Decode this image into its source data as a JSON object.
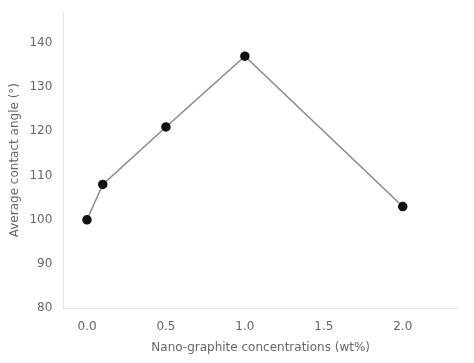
{
  "chart_data": {
    "type": "line",
    "x": [
      0.0,
      0.1,
      0.5,
      1.0,
      2.0
    ],
    "values": [
      100.0,
      108.0,
      121.0,
      137.0,
      103.0
    ],
    "color": "#888888",
    "colors": [
      "#111111",
      "#111111",
      "#111111",
      "#111111",
      "#111111"
    ],
    "marker": "circle",
    "xlabel": "Nano-graphite concentrations (wt%)",
    "ylabel": "Average contact angle (°)",
    "xlim": [
      -0.15,
      2.35
    ],
    "ylim": [
      80,
      147
    ],
    "xticks": [
      {
        "value": 0.0,
        "label": "0.0"
      },
      0.5,
      {
        "value": 1.0,
        "label": "1.0"
      },
      1.5,
      {
        "value": 2.0,
        "label": "2.0"
      }
    ],
    "yticks": [
      80,
      90,
      100,
      110,
      120,
      130,
      140
    ],
    "grid": false
  }
}
